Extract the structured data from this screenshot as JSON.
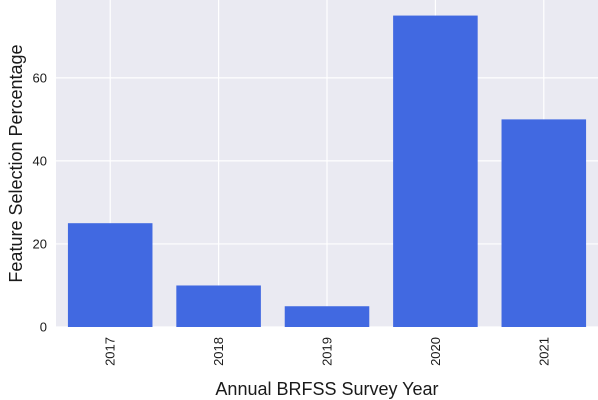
{
  "chart_data": {
    "type": "bar",
    "title": "",
    "xlabel": "Annual BRFSS Survey Year",
    "ylabel": "Feature Selection Percentage",
    "categories": [
      "2017",
      "2018",
      "2019",
      "2020",
      "2021"
    ],
    "values": [
      25,
      10,
      5,
      75,
      50
    ],
    "ylim": [
      0,
      78.75
    ],
    "yticks": [
      "0",
      "20",
      "40",
      "60"
    ],
    "grid": true,
    "legend": "none",
    "colors": {
      "bar": "#4169e1",
      "plot_background": "#eaeaf2",
      "grid": "#ffffff"
    }
  }
}
